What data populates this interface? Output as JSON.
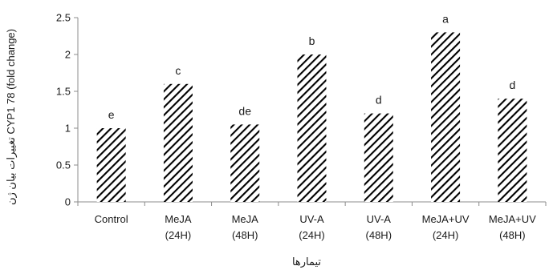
{
  "chart_data": {
    "type": "bar",
    "categories": [
      [
        "Control",
        ""
      ],
      [
        "MeJA",
        "(24H)"
      ],
      [
        "MeJA",
        "(48H)"
      ],
      [
        "UV-A",
        "(24H)"
      ],
      [
        "UV-A",
        "(48H)"
      ],
      [
        "MeJA+UV",
        "(24H)"
      ],
      [
        "MeJA+UV",
        "(48H)"
      ]
    ],
    "values": [
      1.0,
      1.6,
      1.05,
      2.0,
      1.2,
      2.3,
      1.4
    ],
    "significance_letters": [
      "e",
      "c",
      "de",
      "b",
      "d",
      "a",
      "d"
    ],
    "ylim": [
      0,
      2.5
    ],
    "yticks": [
      0,
      0.5,
      1,
      1.5,
      2,
      2.5
    ],
    "ytick_labels": [
      "0",
      "0.5",
      "1",
      "1.5",
      "2",
      "2.5"
    ],
    "xlabel": "تیمارها",
    "ylabel": "تغییرات بیان ژن CYP1 78 (fold change)",
    "bar_fill": "hatched-diagonal",
    "bar_color": "#000000",
    "grid": false,
    "legend": "none"
  }
}
